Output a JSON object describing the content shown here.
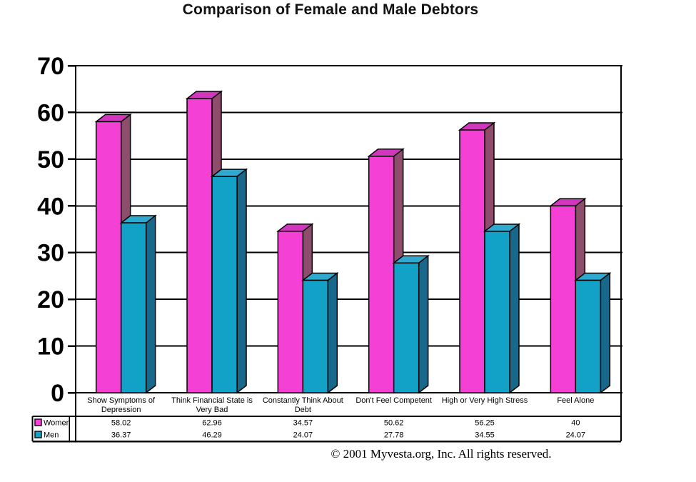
{
  "title": "Comparison of Female and Male Debtors",
  "footer": "© 2001 Myvesta.org, Inc. All rights reserved.",
  "chart_data": {
    "type": "bar",
    "style": "3d-column-clustered",
    "title": "Comparison of Female and Male Debtors",
    "categories": [
      "Show Symptoms of Depression",
      "Think Financial State is Very Bad",
      "Constantly Think About Debt",
      "Don't Feel Competent",
      "High or Very High Stress",
      "Feel Alone"
    ],
    "category_label_lines": [
      [
        "Show Symptoms of",
        "Depression"
      ],
      [
        "Think Financial State is",
        "Very Bad"
      ],
      [
        "Constantly Think About",
        "Debt"
      ],
      [
        "Don't Feel Competent"
      ],
      [
        "High or Very High Stress"
      ],
      [
        "Feel Alone"
      ]
    ],
    "series": [
      {
        "name": "Women",
        "values": [
          58.02,
          62.96,
          34.57,
          50.62,
          56.25,
          40
        ],
        "value_labels": [
          "58.02",
          "62.96",
          "34.57",
          "50.62",
          "56.25",
          "40"
        ],
        "color_front": "#F440D4",
        "color_top": "#D136BC",
        "color_side": "#8E4D6B"
      },
      {
        "name": "Men",
        "values": [
          36.37,
          46.29,
          24.07,
          27.78,
          34.55,
          24.07
        ],
        "value_labels": [
          "36.37",
          "46.29",
          "24.07",
          "27.78",
          "34.55",
          "24.07"
        ],
        "color_front": "#12A2C8",
        "color_top": "#2FA9CD",
        "color_side": "#17688A"
      }
    ],
    "ylim": [
      0,
      70
    ],
    "ytick_step": 10,
    "ytick_labels": [
      "0",
      "10",
      "20",
      "30",
      "40",
      "50",
      "60",
      "70"
    ],
    "grid": true,
    "legend_position": "data-table-left",
    "data_table_shown": true,
    "axis_color": "#000000",
    "background_color": "#ffffff"
  }
}
